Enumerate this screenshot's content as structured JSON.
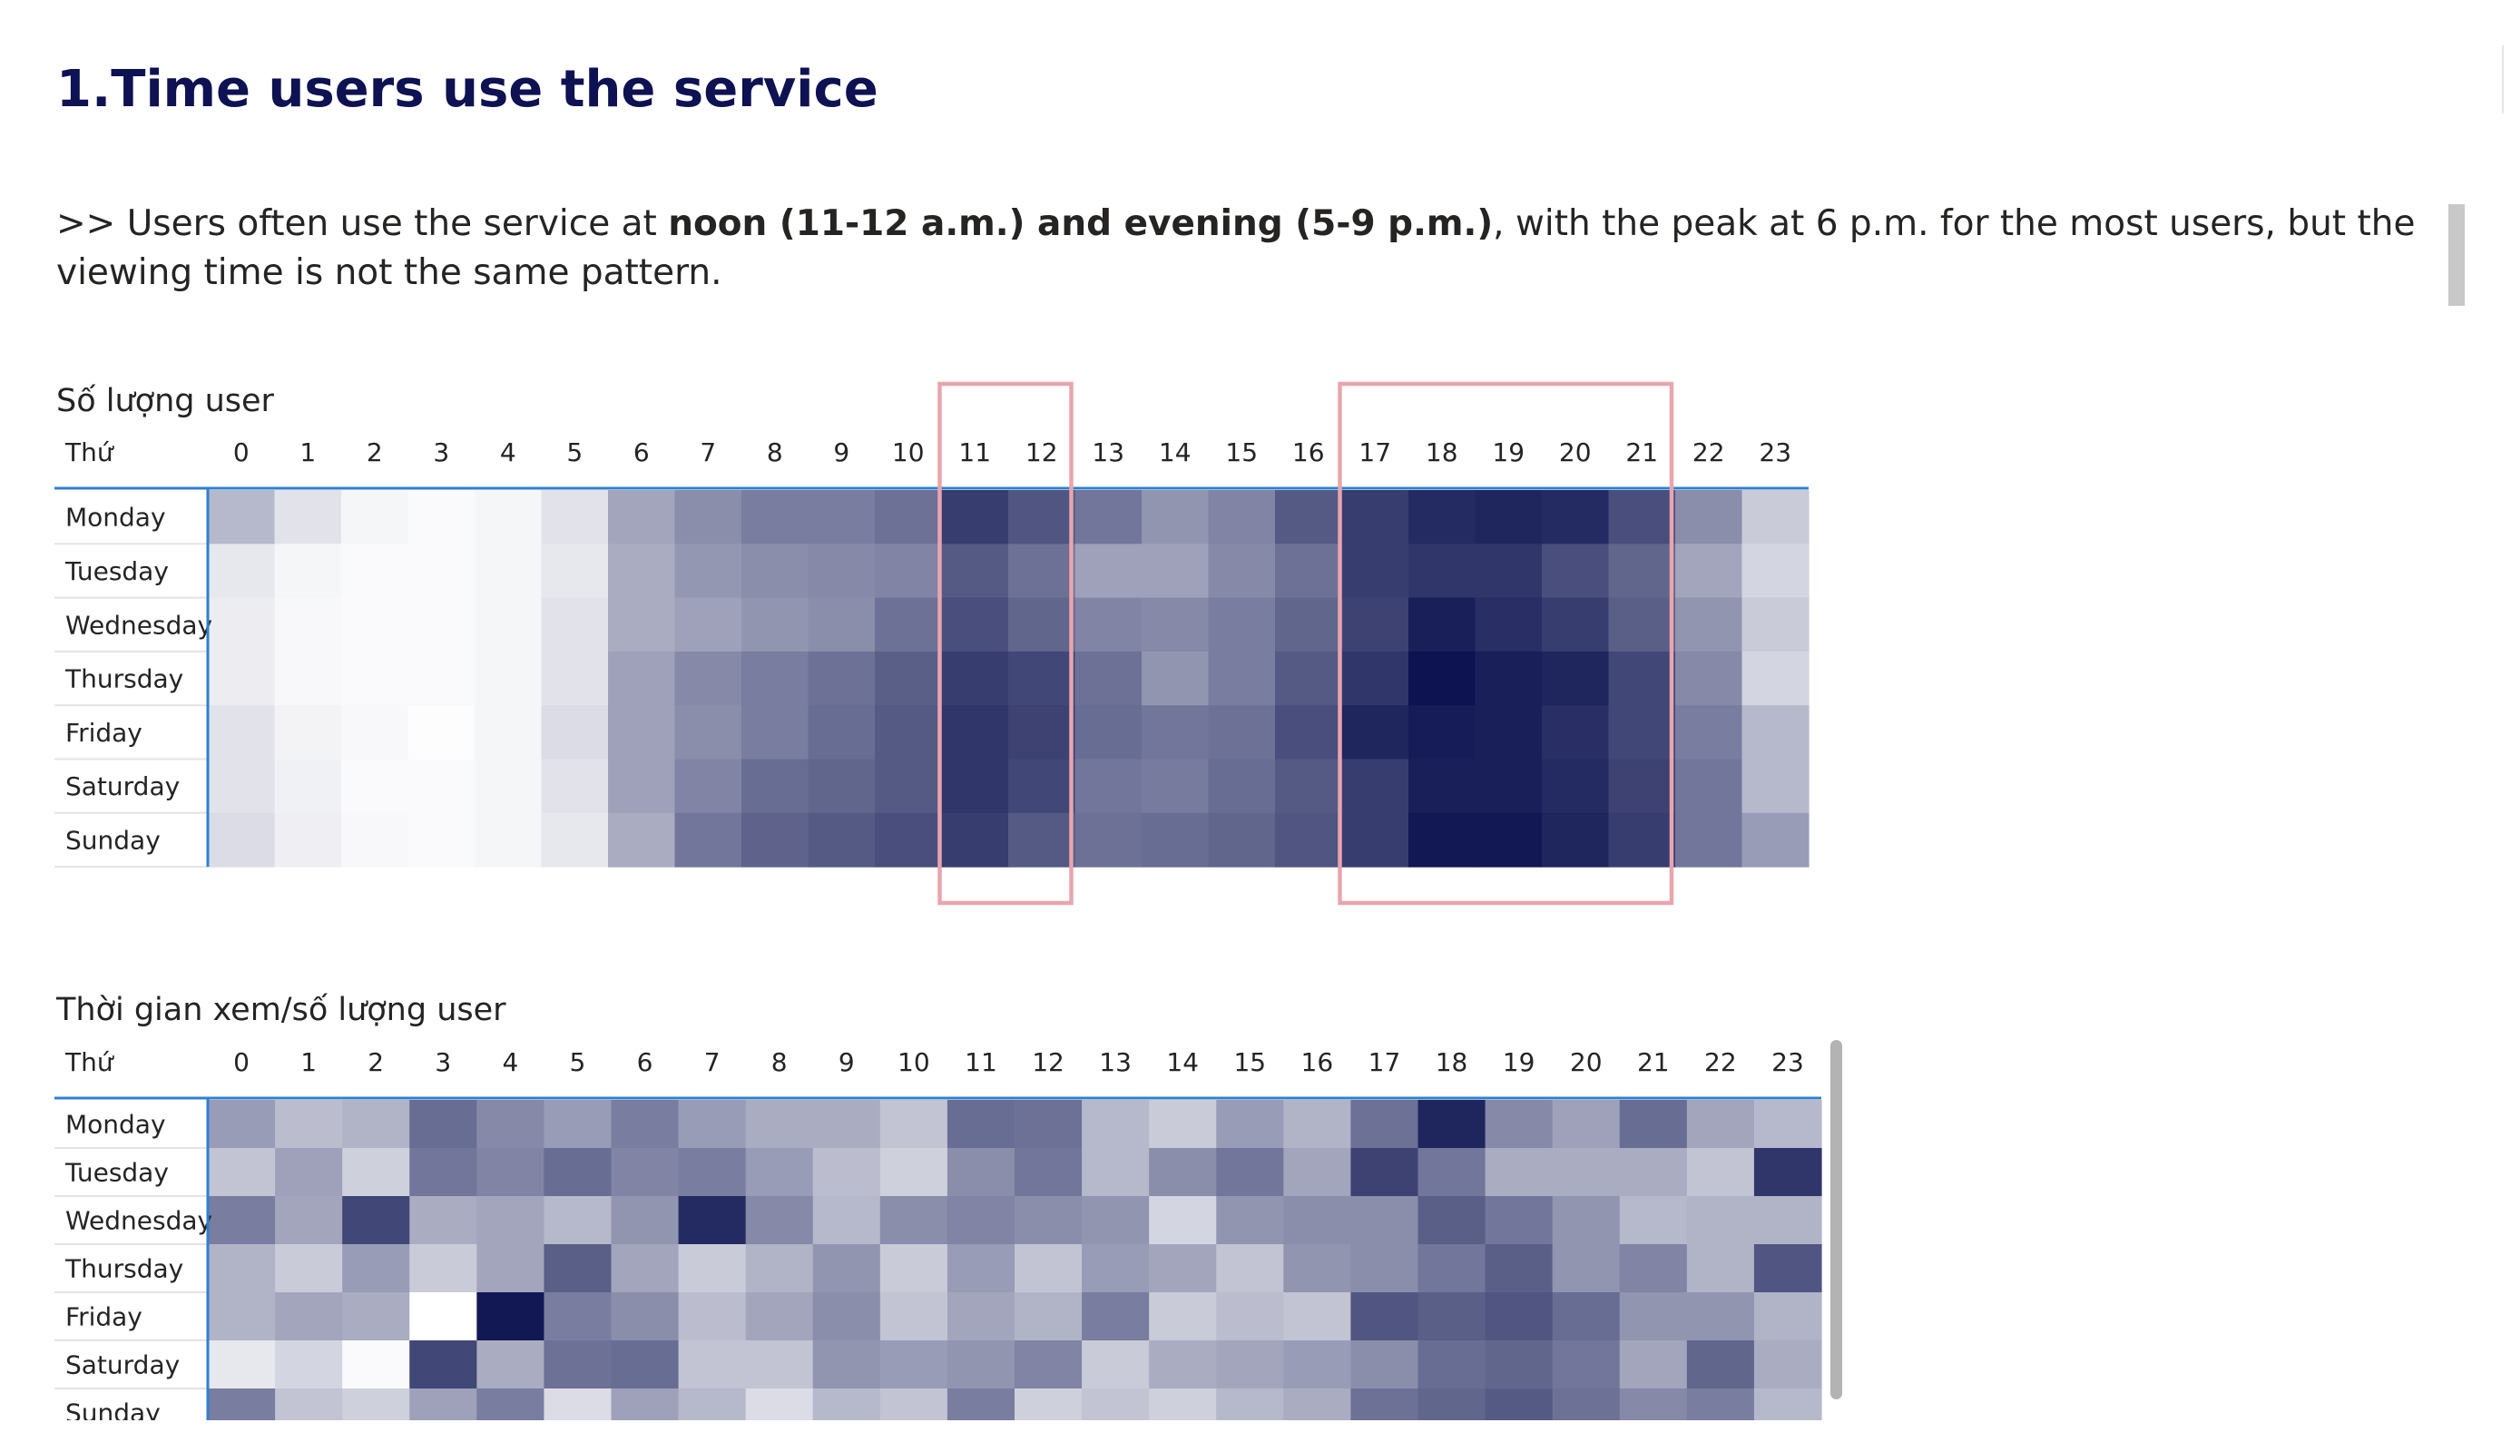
{
  "page": {
    "title": "1.Time users use the service",
    "description": {
      "prefix": ">> Users often use the service at ",
      "bold": "noon (11-12 a.m.) and evening (5-9 p.m.)",
      "suffix": ", with the peak at 6 p.m. for the most users, but the viewing time is not the same pattern."
    }
  },
  "chart_data": [
    {
      "type": "heatmap",
      "title": "Số lượng user",
      "row_header": "Thứ",
      "columns": [
        "0",
        "1",
        "2",
        "3",
        "4",
        "5",
        "6",
        "7",
        "8",
        "9",
        "10",
        "11",
        "12",
        "13",
        "14",
        "15",
        "16",
        "17",
        "18",
        "19",
        "20",
        "21",
        "22",
        "23"
      ],
      "rows": [
        "Monday",
        "Tuesday",
        "Wednesday",
        "Thursday",
        "Friday",
        "Saturday",
        "Sunday"
      ],
      "values": [
        [
          30,
          12,
          4,
          2,
          4,
          12,
          38,
          48,
          55,
          55,
          60,
          82,
          72,
          58,
          45,
          52,
          70,
          82,
          90,
          92,
          90,
          75,
          48,
          22
        ],
        [
          10,
          4,
          2,
          2,
          4,
          10,
          35,
          44,
          48,
          50,
          52,
          70,
          60,
          40,
          40,
          50,
          60,
          82,
          85,
          85,
          75,
          65,
          38,
          18
        ],
        [
          8,
          3,
          2,
          2,
          4,
          12,
          35,
          40,
          45,
          48,
          60,
          75,
          65,
          52,
          50,
          55,
          65,
          80,
          95,
          88,
          82,
          68,
          45,
          22
        ],
        [
          8,
          3,
          2,
          2,
          4,
          12,
          40,
          50,
          55,
          60,
          68,
          82,
          78,
          60,
          45,
          55,
          70,
          85,
          100,
          95,
          92,
          78,
          50,
          18
        ],
        [
          12,
          5,
          3,
          1,
          4,
          15,
          40,
          48,
          55,
          62,
          70,
          85,
          80,
          62,
          58,
          60,
          75,
          92,
          96,
          95,
          88,
          78,
          55,
          30
        ],
        [
          12,
          6,
          2,
          2,
          4,
          12,
          40,
          52,
          62,
          65,
          70,
          85,
          78,
          58,
          56,
          62,
          70,
          82,
          95,
          95,
          90,
          80,
          58,
          30
        ],
        [
          15,
          7,
          3,
          2,
          4,
          10,
          35,
          58,
          66,
          70,
          75,
          82,
          70,
          60,
          62,
          65,
          72,
          82,
          98,
          98,
          92,
          82,
          58,
          42
        ]
      ],
      "highlight_ranges": [
        [
          11,
          13
        ],
        [
          17,
          22
        ]
      ],
      "color_low": "#ffffff",
      "color_high": "#0c1350"
    },
    {
      "type": "heatmap",
      "title": "Thời gian xem/số lượng user",
      "row_header": "Thứ",
      "columns": [
        "0",
        "1",
        "2",
        "3",
        "4",
        "5",
        "6",
        "7",
        "8",
        "9",
        "10",
        "11",
        "12",
        "13",
        "14",
        "15",
        "16",
        "17",
        "18",
        "19",
        "20",
        "21",
        "22",
        "23"
      ],
      "rows": [
        "Monday",
        "Tuesday",
        "Wednesday",
        "Thursday",
        "Friday",
        "Saturday",
        "Sunday"
      ],
      "values": [
        [
          42,
          28,
          32,
          62,
          50,
          42,
          55,
          42,
          35,
          35,
          25,
          62,
          60,
          30,
          22,
          42,
          32,
          60,
          92,
          50,
          40,
          62,
          38,
          30
        ],
        [
          25,
          40,
          20,
          58,
          52,
          62,
          52,
          55,
          42,
          28,
          20,
          48,
          58,
          30,
          48,
          58,
          38,
          80,
          58,
          35,
          35,
          35,
          25,
          85
        ],
        [
          55,
          38,
          78,
          35,
          38,
          30,
          45,
          90,
          50,
          30,
          48,
          52,
          48,
          45,
          18,
          45,
          48,
          48,
          68,
          58,
          45,
          30,
          32,
          32
        ],
        [
          32,
          22,
          42,
          22,
          38,
          68,
          38,
          22,
          32,
          45,
          22,
          42,
          25,
          42,
          38,
          25,
          45,
          48,
          58,
          68,
          45,
          52,
          32,
          72
        ],
        [
          32,
          38,
          35,
          0,
          98,
          55,
          48,
          28,
          38,
          48,
          25,
          38,
          32,
          55,
          22,
          28,
          25,
          72,
          68,
          72,
          62,
          45,
          45,
          32
        ],
        [
          10,
          18,
          2,
          78,
          35,
          60,
          62,
          25,
          25,
          45,
          42,
          45,
          52,
          22,
          35,
          38,
          42,
          48,
          62,
          65,
          58,
          38,
          65,
          35
        ],
        [
          55,
          25,
          20,
          40,
          55,
          15,
          40,
          30,
          15,
          30,
          25,
          55,
          20,
          25,
          20,
          30,
          35,
          60,
          65,
          70,
          60,
          50,
          55,
          30
        ]
      ],
      "color_low": "#ffffff",
      "color_high": "#0c1350"
    }
  ]
}
